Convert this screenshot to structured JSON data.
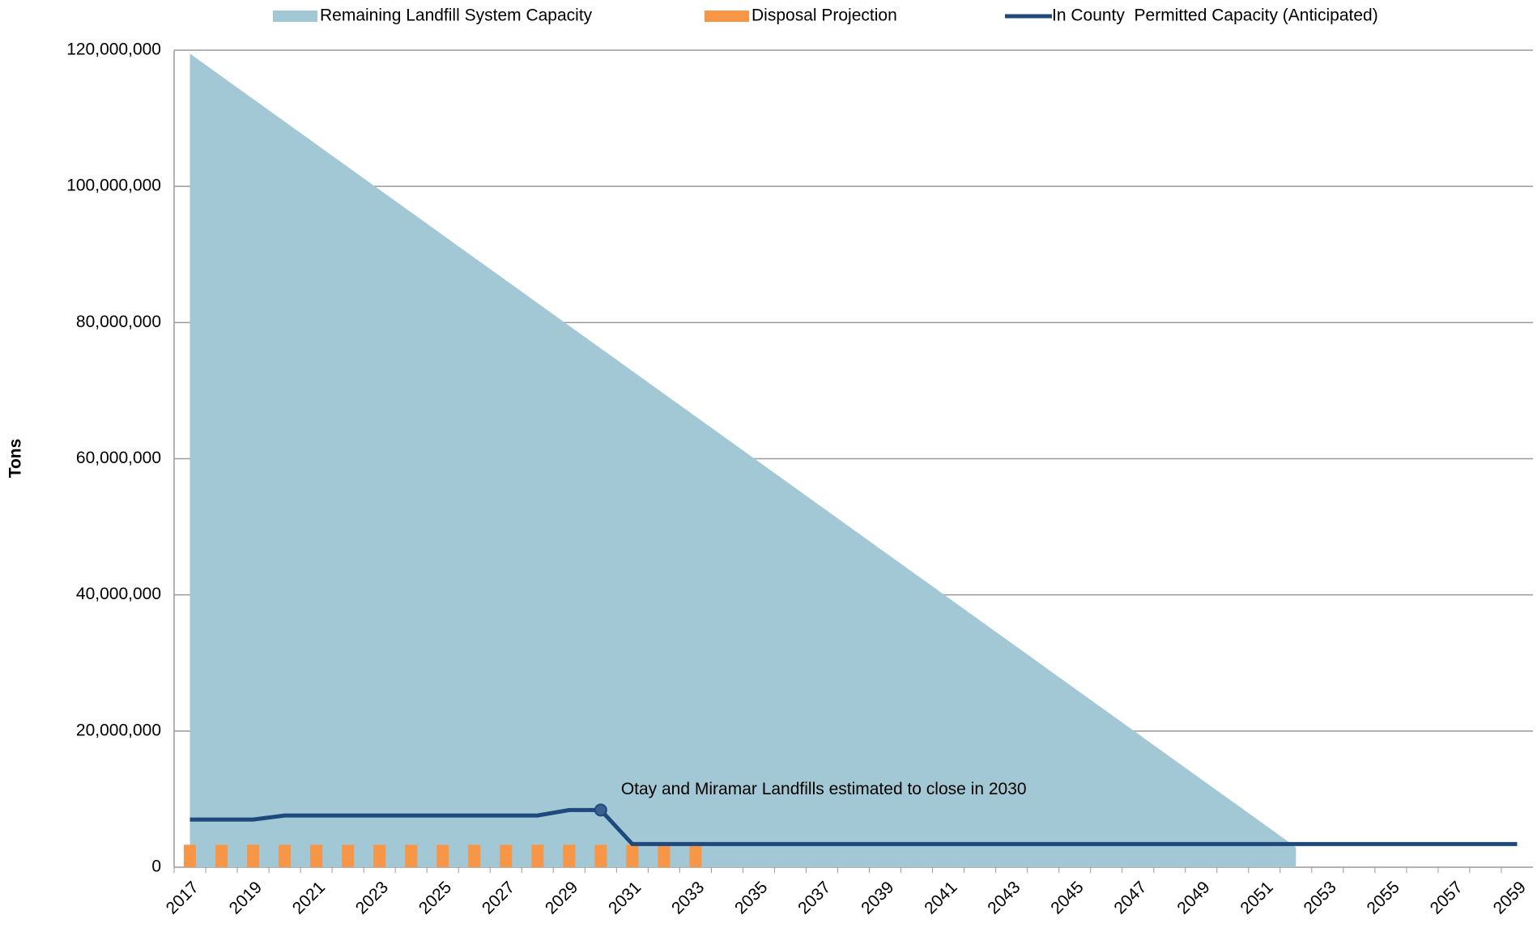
{
  "chart_data": {
    "type": "combo",
    "y_label": "Tons",
    "annotation": "Otay and Miramar Landfills estimated to close in 2030",
    "categories": [
      "2017",
      null,
      "2019",
      null,
      "2021",
      null,
      "2023",
      null,
      "2025",
      null,
      "2027",
      null,
      "2029",
      null,
      "2031",
      null,
      "2033",
      null,
      "2035",
      null,
      "2037",
      null,
      "2039",
      null,
      "2041",
      null,
      "2043",
      null,
      "2045",
      null,
      "2047",
      null,
      "2049",
      null,
      "2051",
      null,
      "2053",
      null,
      "2055",
      null,
      "2057",
      null,
      "2059"
    ],
    "series": [
      {
        "name": "Remaining Landfill System Capacity",
        "type": "area",
        "color": "#a1c8d4",
        "values": [
          119500000,
          116170000,
          112840000,
          109510000,
          106180000,
          102850000,
          99520000,
          96190000,
          92860000,
          89530000,
          86200000,
          82870000,
          79540000,
          76210000,
          72880000,
          69550000,
          66220000,
          62890000,
          59560000,
          56230000,
          52900000,
          49570000,
          46240000,
          42910000,
          39580000,
          36250000,
          32920000,
          29590000,
          26260000,
          22930000,
          19600000,
          16270000,
          12940000,
          9610000,
          6280000,
          2950000,
          null,
          null,
          null,
          null,
          null,
          null,
          null
        ]
      },
      {
        "name": "Disposal Projection",
        "type": "bar",
        "color": "#f79646",
        "values": [
          3300000,
          3300000,
          3300000,
          3300000,
          3300000,
          3300000,
          3300000,
          3300000,
          3300000,
          3300000,
          3300000,
          3300000,
          3300000,
          3300000,
          3300000,
          3300000,
          3300000,
          null,
          null,
          null,
          null,
          null,
          null,
          null,
          null,
          null,
          null,
          null,
          null,
          null,
          null,
          null,
          null,
          null,
          null,
          null,
          null,
          null,
          null,
          null,
          null,
          null,
          null
        ]
      },
      {
        "name": "In County  Permitted Capacity (Anticipated)",
        "type": "line",
        "color": "#1f497d",
        "values": [
          7000000,
          7000000,
          7000000,
          7600000,
          7600000,
          7600000,
          7600000,
          7600000,
          7600000,
          7600000,
          7600000,
          7600000,
          8400000,
          8400000,
          3400000,
          3400000,
          3400000,
          3400000,
          3400000,
          3400000,
          3400000,
          3400000,
          3400000,
          3400000,
          3400000,
          3400000,
          3400000,
          3400000,
          3400000,
          3400000,
          3400000,
          3400000,
          3400000,
          3400000,
          3400000,
          3400000,
          3400000,
          3400000,
          3400000,
          3400000,
          3400000,
          3400000,
          3400000
        ]
      }
    ],
    "ylim": [
      0,
      120000000
    ],
    "yticks": [
      0,
      {
        "value": 20000000,
        "label": "20,000,000"
      },
      {
        "value": 40000000,
        "label": "40,000,000"
      },
      {
        "value": 60000000,
        "label": "60,000,000"
      },
      {
        "value": 80000000,
        "label": "80,000,000"
      },
      {
        "value": 100000000,
        "label": "100,000,000"
      },
      {
        "value": 120000000,
        "label": "120,000,000"
      }
    ],
    "grid": true
  }
}
